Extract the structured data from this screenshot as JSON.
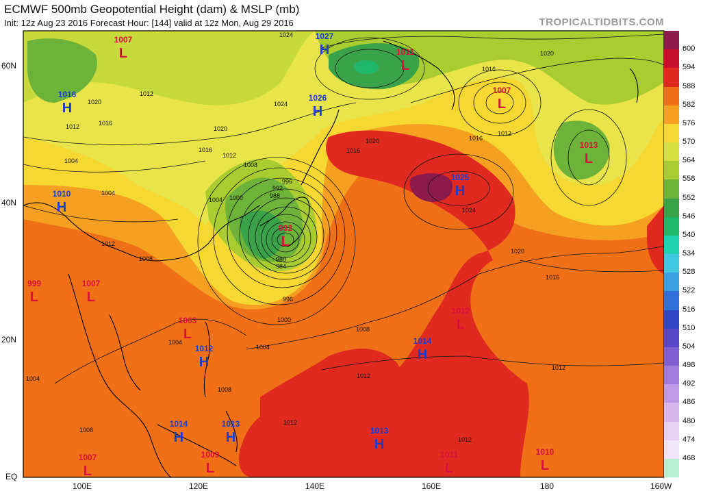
{
  "header": {
    "title": "ECMWF 500mb Geopotential Height (dam) & MSLP (mb)",
    "subtitle": "Init: 12z Aug 23 2016   Forecast Hour: [144]   valid at 12z Mon, Aug 29 2016",
    "brand": "TROPICALTIDBITS.COM"
  },
  "axes": {
    "lat_labels": [
      "60N",
      "40N",
      "20N",
      "EQ"
    ],
    "lon_labels": [
      "100E",
      "120E",
      "140E",
      "160E",
      "180",
      "160W"
    ]
  },
  "colorbar": {
    "labels": [
      "600",
      "594",
      "588",
      "582",
      "576",
      "570",
      "564",
      "558",
      "552",
      "546",
      "540",
      "534",
      "528",
      "522",
      "516",
      "510",
      "504",
      "498",
      "492",
      "486",
      "480",
      "474",
      "468"
    ],
    "colors": [
      "#8c1a4d",
      "#c8102e",
      "#e02a20",
      "#f07018",
      "#f5a020",
      "#f5d832",
      "#d6e040",
      "#a9cc30",
      "#6db33a",
      "#3aa34a",
      "#20b76a",
      "#20d0b0",
      "#40c8e0",
      "#3aa0e0",
      "#3070d8",
      "#3048c8",
      "#5a46c8",
      "#8060d0",
      "#a07cdc",
      "#c09ae6",
      "#d8b8ee",
      "#e6d0f4",
      "#f0e4f8",
      "#b6f0d0"
    ]
  },
  "pressure_centers": [
    {
      "type": "H",
      "value": "1027"
    },
    {
      "type": "L",
      "value": "1011"
    },
    {
      "type": "L",
      "value": "1007"
    },
    {
      "type": "H",
      "value": "1016"
    },
    {
      "type": "H",
      "value": "1026"
    },
    {
      "type": "L",
      "value": "1007"
    },
    {
      "type": "L",
      "value": "1013"
    },
    {
      "type": "H",
      "value": "1025"
    },
    {
      "type": "H",
      "value": "1010"
    },
    {
      "type": "L",
      "value": "932"
    },
    {
      "type": "L",
      "value": "999"
    },
    {
      "type": "L",
      "value": "1007"
    },
    {
      "type": "L",
      "value": "1003"
    },
    {
      "type": "H",
      "value": "1012"
    },
    {
      "type": "H",
      "value": "1014"
    },
    {
      "type": "L",
      "value": "1012"
    },
    {
      "type": "H",
      "value": "1014"
    },
    {
      "type": "H",
      "value": "1013"
    },
    {
      "type": "H",
      "value": "1013"
    },
    {
      "type": "L",
      "value": "1009"
    },
    {
      "type": "L",
      "value": "1007"
    },
    {
      "type": "L",
      "value": "1011"
    },
    {
      "type": "L",
      "value": "1010"
    }
  ],
  "isobar_labels": [
    "1024",
    "1024",
    "1020",
    "1016",
    "1012",
    "1012",
    "1020",
    "1016",
    "1012",
    "1008",
    "1004",
    "1000",
    "996",
    "992",
    "988",
    "984",
    "980",
    "1012",
    "1008",
    "1004",
    "1016",
    "1020",
    "1024",
    "1020",
    "1016",
    "1016",
    "1020",
    "1016",
    "1012",
    "1008",
    "1004",
    "1000",
    "996",
    "1004",
    "1008",
    "1012",
    "1012",
    "1012",
    "1008",
    "1004",
    "1012",
    "1004"
  ],
  "colors": {
    "high": "#1a3ccc",
    "low": "#d8103a"
  }
}
